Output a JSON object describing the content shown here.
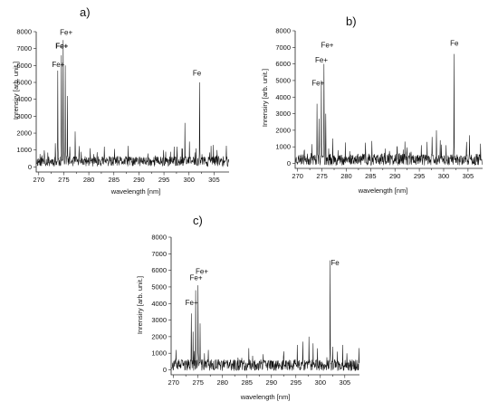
{
  "chart_data": [
    {
      "type": "line",
      "panel_label": "a)",
      "xlabel": "wavelength [nm]",
      "ylabel": "Inrensiry [arb. unit.]",
      "xlim": [
        269.5,
        308
      ],
      "ylim": [
        -300,
        8000
      ],
      "x_ticks": [
        270,
        275,
        280,
        285,
        290,
        295,
        300,
        305
      ],
      "y_ticks": [
        0,
        1000,
        2000,
        3000,
        4000,
        5000,
        6000,
        7000,
        8000
      ],
      "baseline": 300,
      "noise": 300,
      "seed": 11,
      "peaks": [
        {
          "x": 273.8,
          "y": 5700
        },
        {
          "x": 274.5,
          "y": 6600
        },
        {
          "x": 274.9,
          "y": 7500
        },
        {
          "x": 275.3,
          "y": 6000
        },
        {
          "x": 275.7,
          "y": 4200
        },
        {
          "x": 273.3,
          "y": 1400
        },
        {
          "x": 276.2,
          "y": 1200
        },
        {
          "x": 277.3,
          "y": 2100
        },
        {
          "x": 278.5,
          "y": 900
        },
        {
          "x": 283.1,
          "y": 1200
        },
        {
          "x": 291.8,
          "y": 800
        },
        {
          "x": 296.3,
          "y": 900
        },
        {
          "x": 297.6,
          "y": 1200
        },
        {
          "x": 298.6,
          "y": 1100
        },
        {
          "x": 299.2,
          "y": 2600
        },
        {
          "x": 300.1,
          "y": 1500
        },
        {
          "x": 301.4,
          "y": 1100
        },
        {
          "x": 302.1,
          "y": 5000
        },
        {
          "x": 304.9,
          "y": 1300
        },
        {
          "x": 305.6,
          "y": 1000
        }
      ],
      "annotations": [
        {
          "text": "Fe+",
          "x": 275.5,
          "y": 7800,
          "bold": false
        },
        {
          "text": "Fe+",
          "x": 274.6,
          "y": 7000,
          "bold": true
        },
        {
          "text": "Fe+",
          "x": 273.9,
          "y": 5900,
          "bold": false
        },
        {
          "text": "Fe",
          "x": 301.6,
          "y": 5400,
          "bold": false
        }
      ]
    },
    {
      "type": "line",
      "panel_label": "b)",
      "xlabel": "wavelength [nm]",
      "ylabel": "Inrensiry [arb. unit.]",
      "xlim": [
        269.5,
        308
      ],
      "ylim": [
        -300,
        8000
      ],
      "x_ticks": [
        270,
        275,
        280,
        285,
        290,
        295,
        300,
        305
      ],
      "y_ticks": [
        0,
        1000,
        2000,
        3000,
        4000,
        5000,
        6000,
        7000,
        8000
      ],
      "baseline": 200,
      "noise": 350,
      "seed": 23,
      "peaks": [
        {
          "x": 274.0,
          "y": 3600
        },
        {
          "x": 274.4,
          "y": 2700
        },
        {
          "x": 274.9,
          "y": 5000
        },
        {
          "x": 275.4,
          "y": 6000
        },
        {
          "x": 275.8,
          "y": 3000
        },
        {
          "x": 276.4,
          "y": 900
        },
        {
          "x": 277.2,
          "y": 1500
        },
        {
          "x": 278.3,
          "y": 800
        },
        {
          "x": 295.4,
          "y": 1100
        },
        {
          "x": 296.6,
          "y": 1300
        },
        {
          "x": 297.6,
          "y": 1600
        },
        {
          "x": 298.5,
          "y": 2000
        },
        {
          "x": 299.3,
          "y": 1400
        },
        {
          "x": 300.5,
          "y": 1100
        },
        {
          "x": 302.1,
          "y": 6600
        },
        {
          "x": 304.7,
          "y": 1300
        },
        {
          "x": 305.3,
          "y": 1700
        }
      ],
      "annotations": [
        {
          "text": "Fe+",
          "x": 276.1,
          "y": 7000,
          "bold": false
        },
        {
          "text": "Fe+",
          "x": 274.9,
          "y": 6100,
          "bold": false
        },
        {
          "text": "Fe+",
          "x": 274.2,
          "y": 4700,
          "bold": false
        },
        {
          "text": "Fe",
          "x": 302.2,
          "y": 7100,
          "bold": false
        }
      ]
    },
    {
      "type": "line",
      "panel_label": "c)",
      "xlabel": "wavelength [nm]",
      "ylabel": "Inrensiry [arb. unit.]",
      "xlim": [
        269.5,
        308
      ],
      "ylim": [
        -300,
        8000
      ],
      "x_ticks": [
        270,
        275,
        280,
        285,
        290,
        295,
        300,
        305
      ],
      "y_ticks": [
        0,
        1000,
        2000,
        3000,
        4000,
        5000,
        6000,
        7000,
        8000
      ],
      "baseline": 250,
      "noise": 350,
      "seed": 37,
      "peaks": [
        {
          "x": 273.6,
          "y": 3400
        },
        {
          "x": 274.0,
          "y": 2300
        },
        {
          "x": 274.5,
          "y": 4800
        },
        {
          "x": 275.0,
          "y": 5100
        },
        {
          "x": 275.4,
          "y": 2800
        },
        {
          "x": 276.3,
          "y": 1000
        },
        {
          "x": 277.1,
          "y": 1200
        },
        {
          "x": 295.3,
          "y": 1500
        },
        {
          "x": 296.4,
          "y": 1700
        },
        {
          "x": 297.7,
          "y": 2000
        },
        {
          "x": 298.5,
          "y": 1600
        },
        {
          "x": 299.4,
          "y": 1300
        },
        {
          "x": 302.0,
          "y": 6600
        },
        {
          "x": 304.6,
          "y": 1500
        },
        {
          "x": 305.4,
          "y": 1000
        }
      ],
      "annotations": [
        {
          "text": "Fe+",
          "x": 275.8,
          "y": 5800,
          "bold": false
        },
        {
          "text": "Fe+",
          "x": 274.6,
          "y": 5400,
          "bold": false
        },
        {
          "text": "Fe+",
          "x": 273.7,
          "y": 3900,
          "bold": false
        },
        {
          "text": "Fe",
          "x": 303.0,
          "y": 6300,
          "bold": false
        }
      ]
    }
  ]
}
